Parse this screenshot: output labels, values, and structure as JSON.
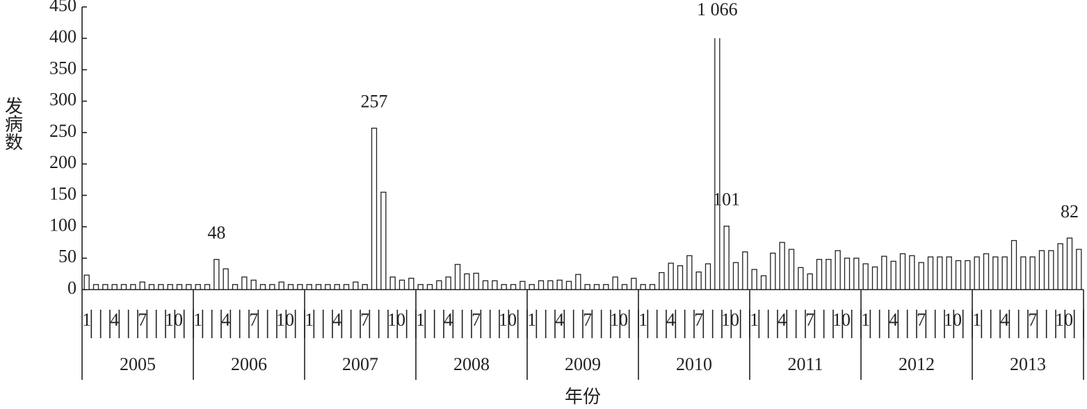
{
  "chart_data": {
    "type": "bar",
    "y_label": "发病数",
    "x_label": "年份",
    "ylim": [
      0,
      450
    ],
    "yticks": [
      0,
      50,
      100,
      150,
      200,
      250,
      300,
      350,
      400,
      450
    ],
    "groups": [
      "2005",
      "2006",
      "2007",
      "2008",
      "2009",
      "2010",
      "2011",
      "2012",
      "2013"
    ],
    "categories": [
      "1",
      null,
      null,
      "4",
      null,
      null,
      "7",
      null,
      null,
      "10",
      null,
      null,
      "1",
      null,
      null,
      "4",
      null,
      null,
      "7",
      null,
      null,
      "10",
      null,
      null,
      "1",
      null,
      null,
      "4",
      null,
      null,
      "7",
      null,
      null,
      "10",
      null,
      null,
      "1",
      null,
      null,
      "4",
      null,
      null,
      "7",
      null,
      null,
      "10",
      null,
      null,
      "1",
      null,
      null,
      "4",
      null,
      null,
      "7",
      null,
      null,
      "10",
      null,
      null,
      "1",
      null,
      null,
      "4",
      null,
      null,
      "7",
      null,
      null,
      "10",
      null,
      null,
      "1",
      null,
      null,
      "4",
      null,
      null,
      "7",
      null,
      null,
      "10",
      null,
      null,
      "1",
      null,
      null,
      "4",
      null,
      null,
      "7",
      null,
      null,
      "10",
      null,
      null,
      "1",
      null,
      null,
      "4",
      null,
      null,
      "7",
      null,
      null,
      "10",
      null,
      null
    ],
    "values": [
      23,
      8,
      8,
      8,
      8,
      8,
      12,
      8,
      8,
      8,
      8,
      8,
      8,
      8,
      48,
      33,
      8,
      20,
      15,
      8,
      8,
      12,
      8,
      8,
      8,
      8,
      8,
      8,
      8,
      12,
      8,
      257,
      155,
      20,
      15,
      18,
      8,
      8,
      14,
      20,
      40,
      25,
      26,
      14,
      14,
      8,
      8,
      13,
      8,
      14,
      14,
      15,
      13,
      24,
      8,
      8,
      8,
      20,
      8,
      18,
      8,
      8,
      27,
      42,
      38,
      54,
      28,
      41,
      1066,
      101,
      43,
      60,
      32,
      22,
      58,
      75,
      64,
      35,
      25,
      48,
      48,
      62,
      50,
      50,
      41,
      36,
      53,
      45,
      57,
      54,
      43,
      52,
      52,
      52,
      46,
      46,
      52,
      57,
      52,
      52,
      78,
      52,
      52,
      62,
      62,
      73,
      82,
      64
    ],
    "value_labels": [
      null,
      null,
      null,
      null,
      null,
      null,
      null,
      null,
      null,
      null,
      null,
      null,
      null,
      null,
      "48",
      null,
      null,
      null,
      null,
      null,
      null,
      null,
      null,
      null,
      null,
      null,
      null,
      null,
      null,
      null,
      null,
      "257",
      null,
      null,
      null,
      null,
      null,
      null,
      null,
      null,
      null,
      null,
      null,
      null,
      null,
      null,
      null,
      null,
      null,
      null,
      null,
      null,
      null,
      null,
      null,
      null,
      null,
      null,
      null,
      null,
      null,
      null,
      null,
      null,
      null,
      null,
      null,
      null,
      "1 066",
      "101",
      null,
      null,
      null,
      null,
      null,
      null,
      null,
      null,
      null,
      null,
      null,
      null,
      null,
      null,
      null,
      null,
      null,
      null,
      null,
      null,
      null,
      null,
      null,
      null,
      null,
      null,
      null,
      null,
      null,
      null,
      null,
      null,
      null,
      null,
      null,
      null,
      "82",
      null
    ],
    "color": "#ffffff",
    "edge_color": "#231f20"
  }
}
